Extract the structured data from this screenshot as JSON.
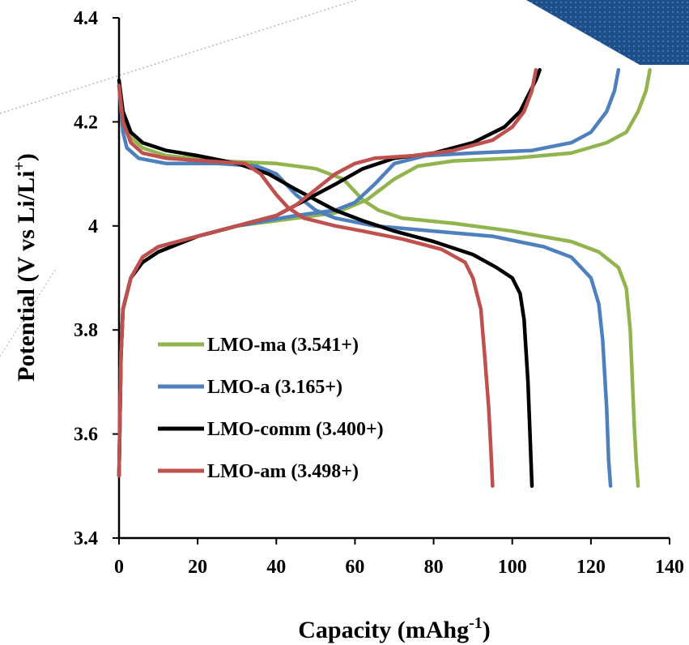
{
  "chart_data": {
    "type": "line",
    "xlabel": "Capacity (mAhg",
    "xlabel_sup": "-1",
    "xlabel_end": ")",
    "ylabel": "Potential (V vs Li/Li",
    "ylabel_sup": "+",
    "ylabel_end": ")",
    "xlim": [
      0,
      140
    ],
    "ylim": [
      3.4,
      4.4
    ],
    "x_ticks": [
      "0",
      "20",
      "40",
      "60",
      "80",
      "100",
      "120",
      "140"
    ],
    "y_ticks": [
      "3.4",
      "3.6",
      "3.8",
      "4",
      "4.2",
      "4.4"
    ],
    "grid": false,
    "legend_position": "lower-left",
    "series": [
      {
        "name": "LMO-ma (3.541+)",
        "color": "#92b44f",
        "charge": [
          [
            0,
            3.52
          ],
          [
            0.5,
            3.75
          ],
          [
            1,
            3.84
          ],
          [
            3,
            3.9
          ],
          [
            6,
            3.94
          ],
          [
            10,
            3.96
          ],
          [
            20,
            3.98
          ],
          [
            30,
            4.0
          ],
          [
            45,
            4.015
          ],
          [
            55,
            4.025
          ],
          [
            63,
            4.05
          ],
          [
            70,
            4.09
          ],
          [
            76,
            4.115
          ],
          [
            85,
            4.125
          ],
          [
            100,
            4.13
          ],
          [
            115,
            4.14
          ],
          [
            124,
            4.16
          ],
          [
            129,
            4.18
          ],
          [
            132,
            4.22
          ],
          [
            134,
            4.26
          ],
          [
            135,
            4.3
          ]
        ],
        "discharge": [
          [
            0,
            4.27
          ],
          [
            1,
            4.2
          ],
          [
            3,
            4.17
          ],
          [
            6,
            4.15
          ],
          [
            12,
            4.135
          ],
          [
            25,
            4.125
          ],
          [
            40,
            4.12
          ],
          [
            50,
            4.11
          ],
          [
            57,
            4.09
          ],
          [
            62,
            4.05
          ],
          [
            66,
            4.03
          ],
          [
            72,
            4.015
          ],
          [
            85,
            4.005
          ],
          [
            100,
            3.99
          ],
          [
            115,
            3.97
          ],
          [
            122,
            3.95
          ],
          [
            127,
            3.92
          ],
          [
            129,
            3.88
          ],
          [
            130,
            3.8
          ],
          [
            131,
            3.62
          ],
          [
            131.5,
            3.55
          ],
          [
            132,
            3.5
          ]
        ]
      },
      {
        "name": "LMO-a (3.165+)",
        "color": "#4e80be",
        "charge": [
          [
            0,
            3.52
          ],
          [
            0.5,
            3.75
          ],
          [
            1,
            3.84
          ],
          [
            3,
            3.9
          ],
          [
            6,
            3.94
          ],
          [
            10,
            3.96
          ],
          [
            20,
            3.98
          ],
          [
            30,
            4.0
          ],
          [
            45,
            4.02
          ],
          [
            55,
            4.03
          ],
          [
            60,
            4.045
          ],
          [
            65,
            4.08
          ],
          [
            70,
            4.12
          ],
          [
            78,
            4.135
          ],
          [
            90,
            4.14
          ],
          [
            105,
            4.145
          ],
          [
            115,
            4.16
          ],
          [
            120,
            4.18
          ],
          [
            124,
            4.22
          ],
          [
            126,
            4.26
          ],
          [
            127,
            4.3
          ]
        ],
        "discharge": [
          [
            0,
            4.27
          ],
          [
            1,
            4.18
          ],
          [
            2,
            4.15
          ],
          [
            5,
            4.13
          ],
          [
            12,
            4.12
          ],
          [
            25,
            4.12
          ],
          [
            35,
            4.115
          ],
          [
            40,
            4.1
          ],
          [
            45,
            4.06
          ],
          [
            50,
            4.03
          ],
          [
            55,
            4.015
          ],
          [
            65,
            4.0
          ],
          [
            80,
            3.99
          ],
          [
            95,
            3.98
          ],
          [
            108,
            3.96
          ],
          [
            115,
            3.94
          ],
          [
            120,
            3.9
          ],
          [
            122,
            3.85
          ],
          [
            123,
            3.78
          ],
          [
            124,
            3.65
          ],
          [
            124.5,
            3.55
          ],
          [
            125,
            3.5
          ]
        ]
      },
      {
        "name": "LMO-comm (3.400+)",
        "color": "#000000",
        "charge": [
          [
            0,
            3.52
          ],
          [
            0.5,
            3.75
          ],
          [
            1,
            3.84
          ],
          [
            3,
            3.9
          ],
          [
            6,
            3.93
          ],
          [
            10,
            3.95
          ],
          [
            20,
            3.98
          ],
          [
            30,
            4.0
          ],
          [
            40,
            4.02
          ],
          [
            45,
            4.04
          ],
          [
            50,
            4.06
          ],
          [
            55,
            4.08
          ],
          [
            62,
            4.11
          ],
          [
            70,
            4.13
          ],
          [
            80,
            4.14
          ],
          [
            90,
            4.16
          ],
          [
            98,
            4.19
          ],
          [
            102,
            4.22
          ],
          [
            104,
            4.25
          ],
          [
            106,
            4.28
          ],
          [
            107,
            4.3
          ]
        ],
        "discharge": [
          [
            0,
            4.28
          ],
          [
            1,
            4.22
          ],
          [
            3,
            4.18
          ],
          [
            6,
            4.16
          ],
          [
            12,
            4.145
          ],
          [
            20,
            4.135
          ],
          [
            30,
            4.12
          ],
          [
            38,
            4.1
          ],
          [
            45,
            4.07
          ],
          [
            50,
            4.05
          ],
          [
            55,
            4.03
          ],
          [
            62,
            4.01
          ],
          [
            70,
            3.99
          ],
          [
            80,
            3.97
          ],
          [
            90,
            3.945
          ],
          [
            96,
            3.92
          ],
          [
            100,
            3.9
          ],
          [
            102,
            3.87
          ],
          [
            103,
            3.82
          ],
          [
            104,
            3.7
          ],
          [
            104.5,
            3.6
          ],
          [
            105,
            3.5
          ]
        ]
      },
      {
        "name": "LMO-am (3.498+)",
        "color": "#c0504d",
        "charge": [
          [
            0,
            3.52
          ],
          [
            0.5,
            3.75
          ],
          [
            1,
            3.84
          ],
          [
            3,
            3.9
          ],
          [
            6,
            3.94
          ],
          [
            10,
            3.96
          ],
          [
            20,
            3.98
          ],
          [
            30,
            4.0
          ],
          [
            40,
            4.02
          ],
          [
            45,
            4.04
          ],
          [
            50,
            4.07
          ],
          [
            55,
            4.1
          ],
          [
            60,
            4.12
          ],
          [
            65,
            4.13
          ],
          [
            75,
            4.135
          ],
          [
            85,
            4.145
          ],
          [
            95,
            4.165
          ],
          [
            100,
            4.19
          ],
          [
            103,
            4.22
          ],
          [
            105,
            4.26
          ],
          [
            106,
            4.3
          ]
        ],
        "discharge": [
          [
            0,
            4.27
          ],
          [
            1,
            4.2
          ],
          [
            3,
            4.16
          ],
          [
            6,
            4.14
          ],
          [
            12,
            4.13
          ],
          [
            22,
            4.125
          ],
          [
            32,
            4.12
          ],
          [
            36,
            4.1
          ],
          [
            40,
            4.06
          ],
          [
            43,
            4.035
          ],
          [
            47,
            4.015
          ],
          [
            55,
            4.0
          ],
          [
            62,
            3.99
          ],
          [
            72,
            3.975
          ],
          [
            82,
            3.955
          ],
          [
            88,
            3.93
          ],
          [
            90,
            3.9
          ],
          [
            92,
            3.84
          ],
          [
            93,
            3.75
          ],
          [
            94,
            3.65
          ],
          [
            94.5,
            3.58
          ],
          [
            95,
            3.5
          ]
        ]
      }
    ]
  }
}
